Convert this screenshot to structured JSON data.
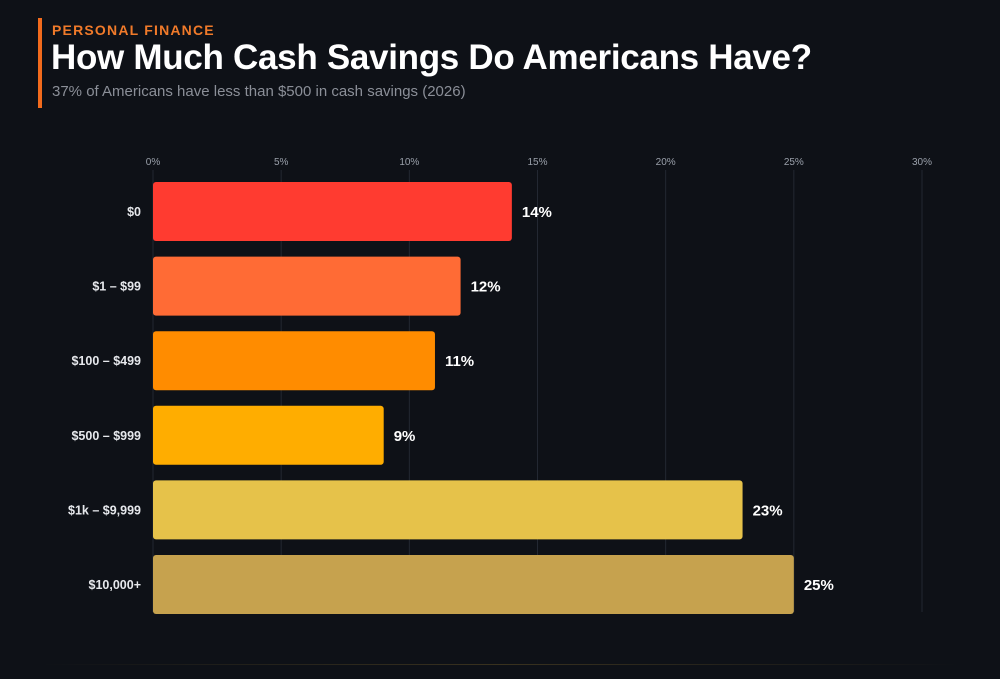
{
  "header": {
    "kicker": "PERSONAL FINANCE",
    "title": "How Much Cash Savings Do Americans Have?",
    "subtitle": "37% of Americans have less than $500 in cash savings (2026)",
    "accent_color": "#f26b1d"
  },
  "chart_data": {
    "type": "bar",
    "orientation": "horizontal",
    "title": "How Much Cash Savings Do Americans Have?",
    "xlabel": "",
    "ylabel": "",
    "xlim": [
      0,
      30
    ],
    "ticks": [
      0,
      5,
      10,
      15,
      20,
      25,
      30
    ],
    "tick_labels": [
      "0%",
      "5%",
      "10%",
      "15%",
      "20%",
      "25%",
      "30%"
    ],
    "categories": [
      "$0",
      "$1 – $99",
      "$100 – $499",
      "$500 – $999",
      "$1k – $9,999",
      "$10,000+"
    ],
    "values": [
      14,
      12,
      11,
      9,
      23,
      25
    ],
    "value_labels": [
      "14%",
      "12%",
      "11%",
      "9%",
      "23%",
      "25%"
    ],
    "colors": [
      "#ff3b30",
      "#ff6b35",
      "#ff8c00",
      "#ffad00",
      "#e6c24a",
      "#c6a24e"
    ],
    "grid": true,
    "legend": "none"
  }
}
